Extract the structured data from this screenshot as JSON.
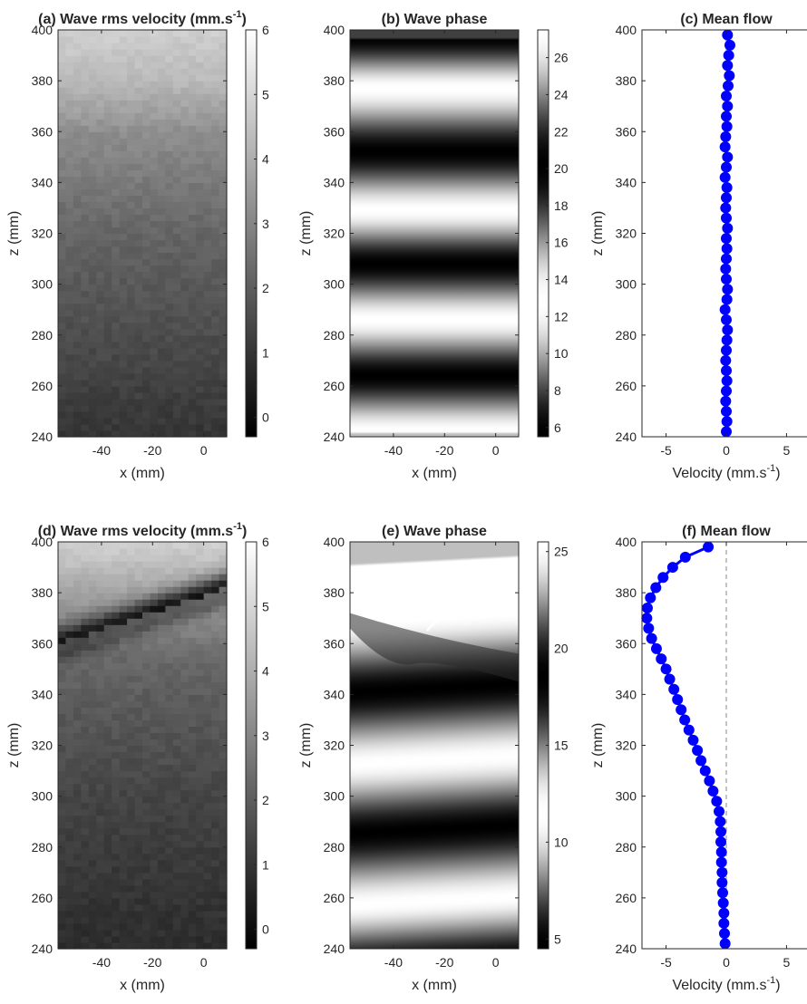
{
  "chart_data": [
    {
      "id": "a",
      "type": "heatmap",
      "title": "(a) Wave rms velocity (mm.s",
      "title_sup": "-1",
      "title_end": ")",
      "xlabel": "x (mm)",
      "ylabel": "z (mm)",
      "xlim": [
        -57,
        9
      ],
      "ylim": [
        240,
        400
      ],
      "xticks": [
        -40,
        -20,
        0
      ],
      "yticks": [
        240,
        260,
        280,
        300,
        320,
        340,
        360,
        380,
        400
      ],
      "colorbar": {
        "min": -0.3,
        "max": 6.0,
        "ticks": [
          0,
          1,
          2,
          3,
          4,
          5,
          6
        ],
        "colormap": "gray"
      },
      "profile": [
        [
          240,
          1.0
        ],
        [
          280,
          1.6
        ],
        [
          320,
          2.2
        ],
        [
          360,
          3.2
        ],
        [
          380,
          4.3
        ],
        [
          400,
          4.8
        ]
      ]
    },
    {
      "id": "b",
      "type": "heatmap",
      "title": "(b) Wave phase",
      "xlabel": "x (mm)",
      "ylabel": "z (mm)",
      "xlim": [
        -57,
        9
      ],
      "ylim": [
        240,
        400
      ],
      "xticks": [
        -40,
        -20,
        0
      ],
      "yticks": [
        240,
        260,
        280,
        300,
        320,
        340,
        360,
        380,
        400
      ],
      "colorbar": {
        "min": 5.5,
        "max": 27.5,
        "ticks": [
          6,
          8,
          10,
          12,
          14,
          16,
          18,
          20,
          22,
          24,
          26
        ],
        "colormap": "gray-cyclic"
      },
      "bright_bands_z": [
        242,
        286,
        329,
        377
      ],
      "dark_bands_z": [
        264,
        308,
        352,
        397
      ]
    },
    {
      "id": "c",
      "type": "scatter",
      "title": "(c) Mean flow",
      "xlabel": "Velocity (mm.s",
      "xlabel_sup": "-1",
      "xlabel_end": ")",
      "ylabel": "z (mm)",
      "xlim": [
        -7,
        7
      ],
      "ylim": [
        240,
        400
      ],
      "xticks": [
        -5,
        0,
        5
      ],
      "yticks": [
        240,
        260,
        280,
        300,
        320,
        340,
        360,
        380,
        400
      ],
      "marker_color": "#0000ff",
      "reference_line_x": 0,
      "points": {
        "z": [
          242,
          246,
          250,
          254,
          258,
          262,
          266,
          270,
          274,
          278,
          282,
          286,
          290,
          294,
          298,
          302,
          306,
          310,
          314,
          318,
          322,
          326,
          330,
          334,
          338,
          342,
          346,
          350,
          354,
          358,
          362,
          366,
          370,
          374,
          378,
          382,
          386,
          390,
          394,
          398
        ],
        "velocity": [
          0.0,
          0.05,
          0.0,
          -0.05,
          0.0,
          0.05,
          0.0,
          -0.05,
          0.0,
          0.05,
          0.1,
          0.0,
          -0.1,
          0.05,
          0.1,
          0.0,
          -0.05,
          0.0,
          0.05,
          0.0,
          0.1,
          0.0,
          -0.05,
          0.0,
          0.05,
          -0.1,
          0.0,
          0.1,
          -0.1,
          -0.05,
          0.05,
          0.0,
          0.1,
          0.0,
          0.15,
          0.25,
          0.1,
          0.2,
          0.3,
          0.1
        ]
      }
    },
    {
      "id": "d",
      "type": "heatmap",
      "title": "(d) Wave rms velocity (mm.s",
      "title_sup": "-1",
      "title_end": ")",
      "xlabel": "x (mm)",
      "ylabel": "z (mm)",
      "xlim": [
        -57,
        9
      ],
      "ylim": [
        240,
        400
      ],
      "xticks": [
        -40,
        -20,
        0
      ],
      "yticks": [
        240,
        260,
        280,
        300,
        320,
        340,
        360,
        380,
        400
      ],
      "colorbar": {
        "min": -0.3,
        "max": 6.0,
        "ticks": [
          0,
          1,
          2,
          3,
          4,
          5,
          6
        ],
        "colormap": "gray"
      },
      "profile": [
        [
          240,
          0.8
        ],
        [
          300,
          1.4
        ],
        [
          340,
          2.0
        ],
        [
          355,
          2.3
        ],
        [
          395,
          4.6
        ],
        [
          400,
          4.8
        ]
      ],
      "dark_band": {
        "z_left": 360,
        "z_right": 382,
        "value": 0.2,
        "half_width_mm": 6
      }
    },
    {
      "id": "e",
      "type": "heatmap",
      "title": "(e) Wave phase",
      "xlabel": "x (mm)",
      "ylabel": "z (mm)",
      "xlim": [
        -57,
        9
      ],
      "ylim": [
        240,
        400
      ],
      "xticks": [
        -40,
        -20,
        0
      ],
      "yticks": [
        240,
        260,
        280,
        300,
        320,
        340,
        360,
        380,
        400
      ],
      "colorbar": {
        "min": 4.5,
        "max": 25.5,
        "ticks": [
          5,
          10,
          15,
          20,
          25
        ],
        "colormap": "gray-cyclic"
      },
      "bright_bands_z": [
        [
          270,
          266
        ],
        [
          317,
          313
        ],
        [
          365,
          360
        ],
        [
          381,
          382
        ]
      ],
      "dark_bands_z": [
        [
          250,
          245
        ],
        [
          296,
          288
        ],
        [
          341,
          337
        ]
      ]
    },
    {
      "id": "f",
      "type": "scatter",
      "title": "(f) Mean flow",
      "xlabel": "Velocity (mm.s",
      "xlabel_sup": "-1",
      "xlabel_end": ")",
      "ylabel": "z (mm)",
      "xlim": [
        -7,
        7
      ],
      "ylim": [
        240,
        400
      ],
      "xticks": [
        -5,
        0,
        5
      ],
      "yticks": [
        240,
        260,
        280,
        300,
        320,
        340,
        360,
        380,
        400
      ],
      "marker_color": "#0000ff",
      "reference_line_x": 0,
      "points": {
        "z": [
          242,
          246,
          250,
          254,
          258,
          262,
          266,
          270,
          274,
          278,
          282,
          286,
          290,
          294,
          298,
          302,
          306,
          310,
          314,
          318,
          322,
          326,
          330,
          334,
          338,
          342,
          346,
          350,
          354,
          358,
          362,
          366,
          370,
          374,
          378,
          382,
          386,
          390,
          394,
          398
        ],
        "velocity": [
          -0.1,
          -0.15,
          -0.2,
          -0.2,
          -0.25,
          -0.3,
          -0.35,
          -0.35,
          -0.4,
          -0.4,
          -0.45,
          -0.45,
          -0.5,
          -0.6,
          -0.8,
          -1.1,
          -1.4,
          -1.75,
          -2.1,
          -2.4,
          -2.75,
          -3.1,
          -3.45,
          -3.75,
          -4.05,
          -4.35,
          -4.7,
          -5.0,
          -5.4,
          -5.8,
          -6.2,
          -6.45,
          -6.6,
          -6.55,
          -6.3,
          -5.85,
          -5.25,
          -4.45,
          -3.4,
          -1.5
        ]
      }
    }
  ]
}
